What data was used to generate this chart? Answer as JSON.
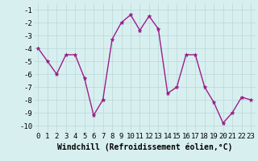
{
  "x": [
    0,
    1,
    2,
    3,
    4,
    5,
    6,
    7,
    8,
    9,
    10,
    11,
    12,
    13,
    14,
    15,
    16,
    17,
    18,
    19,
    20,
    21,
    22,
    23
  ],
  "y": [
    -4.0,
    -5.0,
    -6.0,
    -4.5,
    -4.5,
    -6.3,
    -9.2,
    -8.0,
    -3.3,
    -2.0,
    -1.4,
    -2.6,
    -1.5,
    -2.5,
    -7.5,
    -7.0,
    -4.5,
    -4.5,
    -7.0,
    -8.2,
    -9.8,
    -9.0,
    -7.8,
    -8.0
  ],
  "line_color": "#9b1f8a",
  "marker": "*",
  "marker_color": "#9b1f8a",
  "bg_color": "#d8eff0",
  "grid_color": "#b8d8da",
  "xlabel": "Windchill (Refroidissement éolien,°C)",
  "ylim": [
    -10.5,
    -0.5
  ],
  "xlim": [
    -0.5,
    23.5
  ],
  "yticks": [
    -10,
    -9,
    -8,
    -7,
    -6,
    -5,
    -4,
    -3,
    -2,
    -1
  ],
  "xticks": [
    0,
    1,
    2,
    3,
    4,
    5,
    6,
    7,
    8,
    9,
    10,
    11,
    12,
    13,
    14,
    15,
    16,
    17,
    18,
    19,
    20,
    21,
    22,
    23
  ],
  "tick_label_fontsize": 6.5,
  "xlabel_fontsize": 7,
  "linewidth": 1.0,
  "markersize": 3.5
}
